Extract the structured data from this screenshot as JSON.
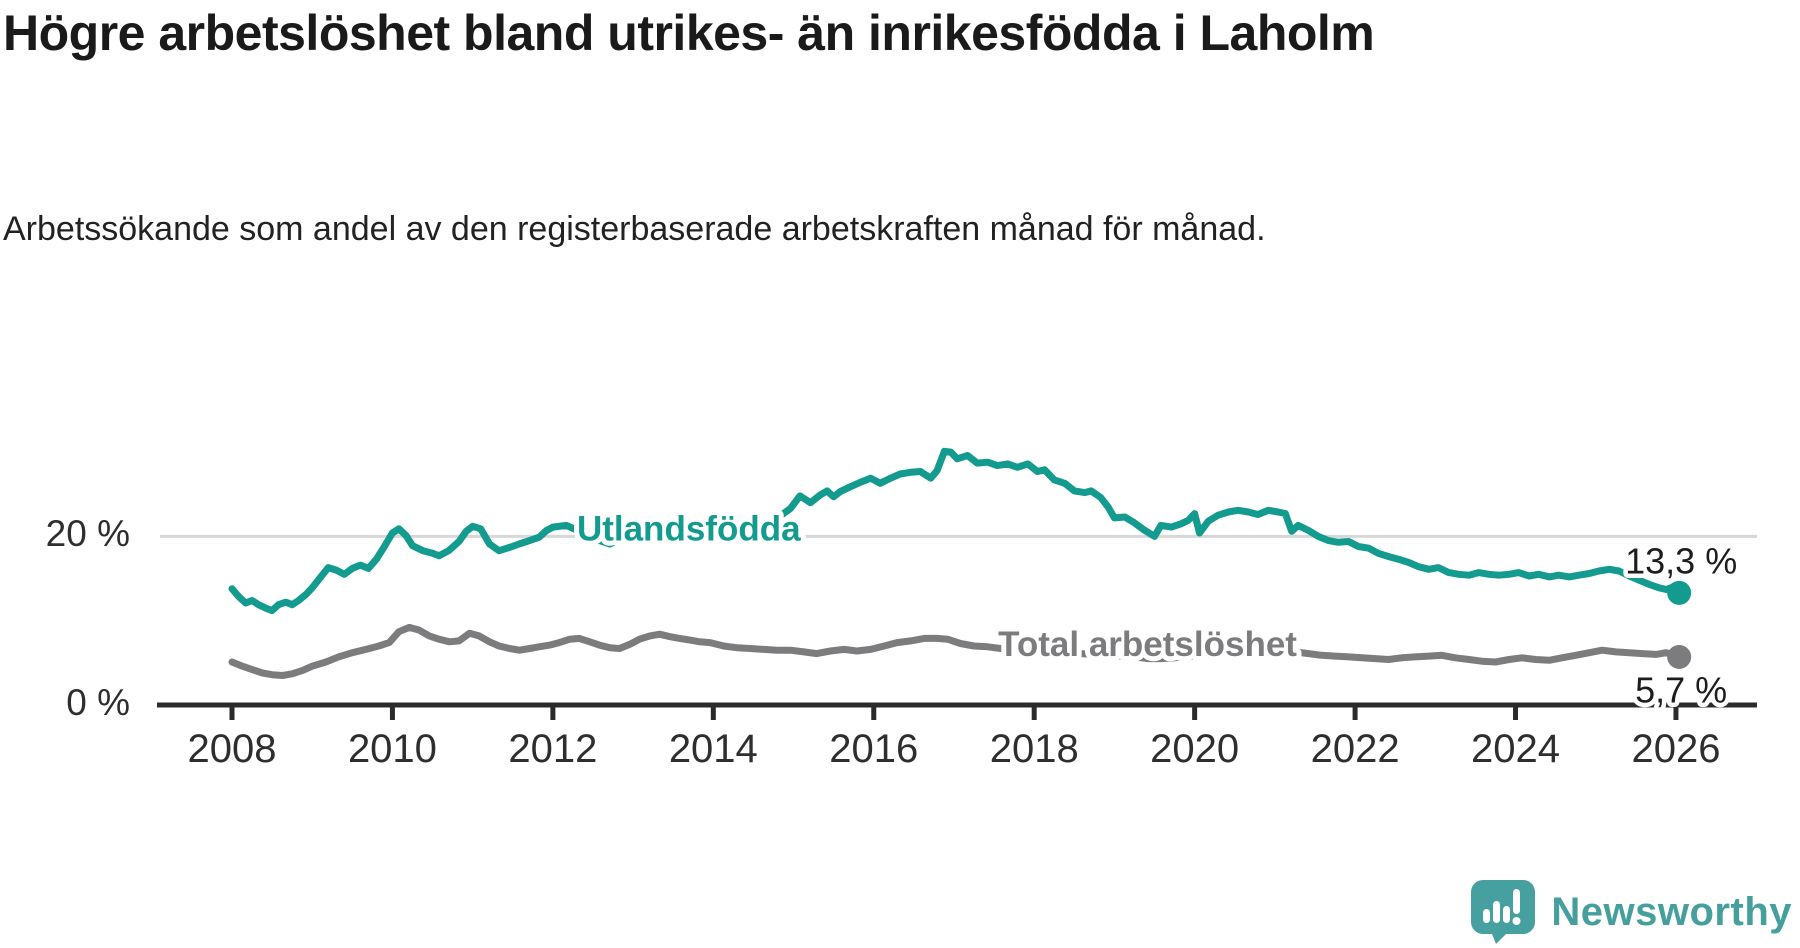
{
  "header": {
    "title": "Högre arbetslöshet bland utrikes- än inrikesfödda i Laholm",
    "subtitle": "Arbetssökande som andel av den registerbaserade arbetskraften månad för månad."
  },
  "footer": {
    "brand": "Newsworthy",
    "logo_icon": "newsworthy-speech-bubble-bar-chart-icon"
  },
  "colors": {
    "series_foreign_born": "#129b8e",
    "series_total": "#7c7c7e",
    "grid": "#d7d7d7",
    "axis": "#2b2b2b",
    "tick_text": "#2e2e2e",
    "annotation_text": "#1d1d1d",
    "logo_teal": "#46a09f",
    "background": "#ffffff"
  },
  "chart_data": {
    "type": "line",
    "unit": "%",
    "x_ticks": [
      2008,
      2010,
      2012,
      2014,
      2016,
      2018,
      2020,
      2022,
      2024,
      2026
    ],
    "y_gridlines": [
      {
        "value": 20,
        "label": "20 %"
      },
      {
        "value": 0,
        "label": "0 %"
      }
    ],
    "xlim": [
      2007.07,
      2026.99
    ],
    "ylim": [
      0,
      38.5
    ],
    "grid": true,
    "legend_position": "inline-labels",
    "series": [
      {
        "name": "Utlandsfödda",
        "color": "#129b8e",
        "end_label": "13,3 %",
        "end_label_position": "above",
        "label_anchor": {
          "x": 2012.3,
          "y": 20.6
        },
        "points": [
          [
            2008.0,
            13.8
          ],
          [
            2008.08,
            12.9
          ],
          [
            2008.17,
            12.1
          ],
          [
            2008.25,
            12.4
          ],
          [
            2008.33,
            11.9
          ],
          [
            2008.42,
            11.5
          ],
          [
            2008.5,
            11.2
          ],
          [
            2008.58,
            11.9
          ],
          [
            2008.67,
            12.2
          ],
          [
            2008.75,
            11.9
          ],
          [
            2008.83,
            12.4
          ],
          [
            2008.92,
            13.1
          ],
          [
            2009.0,
            13.9
          ],
          [
            2009.1,
            15.1
          ],
          [
            2009.2,
            16.3
          ],
          [
            2009.3,
            16.0
          ],
          [
            2009.4,
            15.5
          ],
          [
            2009.5,
            16.2
          ],
          [
            2009.6,
            16.6
          ],
          [
            2009.7,
            16.2
          ],
          [
            2009.8,
            17.3
          ],
          [
            2009.9,
            18.8
          ],
          [
            2010.0,
            20.4
          ],
          [
            2010.08,
            20.9
          ],
          [
            2010.17,
            20.1
          ],
          [
            2010.25,
            18.9
          ],
          [
            2010.38,
            18.3
          ],
          [
            2010.5,
            18.0
          ],
          [
            2010.58,
            17.7
          ],
          [
            2010.7,
            18.3
          ],
          [
            2010.83,
            19.4
          ],
          [
            2010.92,
            20.6
          ],
          [
            2011.0,
            21.2
          ],
          [
            2011.1,
            20.9
          ],
          [
            2011.21,
            19.1
          ],
          [
            2011.33,
            18.3
          ],
          [
            2011.46,
            18.7
          ],
          [
            2011.58,
            19.1
          ],
          [
            2011.71,
            19.5
          ],
          [
            2011.83,
            19.9
          ],
          [
            2011.92,
            20.7
          ],
          [
            2012.0,
            21.1
          ],
          [
            2012.17,
            21.3
          ],
          [
            2012.33,
            20.6
          ],
          [
            2012.46,
            19.9
          ],
          [
            2012.58,
            19.5
          ],
          [
            2012.71,
            19.1
          ],
          [
            2012.83,
            19.6
          ],
          [
            2012.96,
            20.3
          ],
          [
            2013.08,
            21.2
          ],
          [
            2013.21,
            21.9
          ],
          [
            2013.33,
            21.2
          ],
          [
            2013.46,
            20.8
          ],
          [
            2013.58,
            20.3
          ],
          [
            2013.71,
            20.1
          ],
          [
            2013.83,
            20.6
          ],
          [
            2013.96,
            21.0
          ],
          [
            2014.08,
            20.6
          ],
          [
            2014.21,
            20.0
          ],
          [
            2014.33,
            19.7
          ],
          [
            2014.46,
            20.0
          ],
          [
            2014.58,
            20.4
          ],
          [
            2014.71,
            21.5
          ],
          [
            2014.83,
            22.4
          ],
          [
            2014.96,
            23.3
          ],
          [
            2015.08,
            24.8
          ],
          [
            2015.21,
            24.0
          ],
          [
            2015.33,
            24.9
          ],
          [
            2015.42,
            25.4
          ],
          [
            2015.5,
            24.7
          ],
          [
            2015.58,
            25.3
          ],
          [
            2015.71,
            25.9
          ],
          [
            2015.83,
            26.4
          ],
          [
            2015.96,
            26.9
          ],
          [
            2016.08,
            26.3
          ],
          [
            2016.21,
            26.9
          ],
          [
            2016.33,
            27.4
          ],
          [
            2016.46,
            27.6
          ],
          [
            2016.58,
            27.7
          ],
          [
            2016.71,
            26.9
          ],
          [
            2016.79,
            27.8
          ],
          [
            2016.88,
            30.1
          ],
          [
            2016.96,
            30.0
          ],
          [
            2017.04,
            29.2
          ],
          [
            2017.17,
            29.6
          ],
          [
            2017.29,
            28.7
          ],
          [
            2017.42,
            28.8
          ],
          [
            2017.54,
            28.4
          ],
          [
            2017.67,
            28.6
          ],
          [
            2017.79,
            28.2
          ],
          [
            2017.92,
            28.6
          ],
          [
            2018.04,
            27.7
          ],
          [
            2018.13,
            27.9
          ],
          [
            2018.25,
            26.7
          ],
          [
            2018.38,
            26.3
          ],
          [
            2018.5,
            25.4
          ],
          [
            2018.63,
            25.2
          ],
          [
            2018.71,
            25.4
          ],
          [
            2018.83,
            24.6
          ],
          [
            2018.92,
            23.5
          ],
          [
            2019.0,
            22.2
          ],
          [
            2019.13,
            22.3
          ],
          [
            2019.25,
            21.6
          ],
          [
            2019.38,
            20.7
          ],
          [
            2019.5,
            20.0
          ],
          [
            2019.58,
            21.3
          ],
          [
            2019.71,
            21.1
          ],
          [
            2019.83,
            21.5
          ],
          [
            2019.92,
            21.9
          ],
          [
            2020.0,
            22.7
          ],
          [
            2020.06,
            20.4
          ],
          [
            2020.17,
            21.8
          ],
          [
            2020.29,
            22.5
          ],
          [
            2020.42,
            22.9
          ],
          [
            2020.54,
            23.1
          ],
          [
            2020.67,
            22.9
          ],
          [
            2020.79,
            22.6
          ],
          [
            2020.92,
            23.1
          ],
          [
            2021.04,
            22.9
          ],
          [
            2021.13,
            22.7
          ],
          [
            2021.21,
            20.6
          ],
          [
            2021.29,
            21.3
          ],
          [
            2021.42,
            20.7
          ],
          [
            2021.54,
            20.0
          ],
          [
            2021.67,
            19.5
          ],
          [
            2021.79,
            19.3
          ],
          [
            2021.92,
            19.4
          ],
          [
            2022.04,
            18.8
          ],
          [
            2022.17,
            18.6
          ],
          [
            2022.29,
            18.0
          ],
          [
            2022.42,
            17.6
          ],
          [
            2022.54,
            17.3
          ],
          [
            2022.67,
            16.9
          ],
          [
            2022.79,
            16.4
          ],
          [
            2022.92,
            16.1
          ],
          [
            2023.04,
            16.3
          ],
          [
            2023.17,
            15.7
          ],
          [
            2023.29,
            15.5
          ],
          [
            2023.42,
            15.4
          ],
          [
            2023.54,
            15.7
          ],
          [
            2023.67,
            15.5
          ],
          [
            2023.79,
            15.4
          ],
          [
            2023.92,
            15.5
          ],
          [
            2024.04,
            15.7
          ],
          [
            2024.17,
            15.3
          ],
          [
            2024.29,
            15.5
          ],
          [
            2024.42,
            15.2
          ],
          [
            2024.54,
            15.4
          ],
          [
            2024.67,
            15.2
          ],
          [
            2024.79,
            15.4
          ],
          [
            2024.92,
            15.6
          ],
          [
            2025.04,
            15.9
          ],
          [
            2025.17,
            16.1
          ],
          [
            2025.29,
            15.9
          ],
          [
            2025.42,
            15.3
          ],
          [
            2025.54,
            14.8
          ],
          [
            2025.67,
            14.3
          ],
          [
            2025.79,
            13.9
          ],
          [
            2025.88,
            13.7
          ],
          [
            2025.96,
            14.0
          ],
          [
            2026.04,
            13.3
          ]
        ]
      },
      {
        "name": "Total arbetslöshet",
        "color": "#7c7c7e",
        "end_label": "5,7 %",
        "end_label_position": "below",
        "label_anchor": {
          "x": 2017.55,
          "y": 6.9
        },
        "points": [
          [
            2008.0,
            5.1
          ],
          [
            2008.13,
            4.6
          ],
          [
            2008.25,
            4.2
          ],
          [
            2008.38,
            3.8
          ],
          [
            2008.5,
            3.6
          ],
          [
            2008.63,
            3.5
          ],
          [
            2008.75,
            3.7
          ],
          [
            2008.88,
            4.1
          ],
          [
            2009.0,
            4.6
          ],
          [
            2009.17,
            5.1
          ],
          [
            2009.33,
            5.7
          ],
          [
            2009.5,
            6.2
          ],
          [
            2009.67,
            6.6
          ],
          [
            2009.83,
            7.0
          ],
          [
            2009.96,
            7.4
          ],
          [
            2010.08,
            8.7
          ],
          [
            2010.21,
            9.2
          ],
          [
            2010.33,
            8.9
          ],
          [
            2010.46,
            8.2
          ],
          [
            2010.58,
            7.8
          ],
          [
            2010.71,
            7.5
          ],
          [
            2010.83,
            7.6
          ],
          [
            2010.96,
            8.5
          ],
          [
            2011.08,
            8.2
          ],
          [
            2011.21,
            7.5
          ],
          [
            2011.33,
            7.0
          ],
          [
            2011.46,
            6.7
          ],
          [
            2011.58,
            6.5
          ],
          [
            2011.71,
            6.7
          ],
          [
            2011.83,
            6.9
          ],
          [
            2011.96,
            7.1
          ],
          [
            2012.08,
            7.4
          ],
          [
            2012.21,
            7.8
          ],
          [
            2012.33,
            7.9
          ],
          [
            2012.46,
            7.5
          ],
          [
            2012.58,
            7.1
          ],
          [
            2012.71,
            6.8
          ],
          [
            2012.83,
            6.7
          ],
          [
            2012.96,
            7.2
          ],
          [
            2013.08,
            7.8
          ],
          [
            2013.21,
            8.2
          ],
          [
            2013.33,
            8.4
          ],
          [
            2013.46,
            8.1
          ],
          [
            2013.58,
            7.9
          ],
          [
            2013.71,
            7.7
          ],
          [
            2013.83,
            7.5
          ],
          [
            2013.96,
            7.4
          ],
          [
            2014.13,
            7.0
          ],
          [
            2014.29,
            6.8
          ],
          [
            2014.46,
            6.7
          ],
          [
            2014.63,
            6.6
          ],
          [
            2014.79,
            6.5
          ],
          [
            2014.96,
            6.5
          ],
          [
            2015.13,
            6.3
          ],
          [
            2015.29,
            6.1
          ],
          [
            2015.46,
            6.4
          ],
          [
            2015.63,
            6.6
          ],
          [
            2015.79,
            6.4
          ],
          [
            2015.96,
            6.6
          ],
          [
            2016.13,
            7.0
          ],
          [
            2016.29,
            7.4
          ],
          [
            2016.46,
            7.6
          ],
          [
            2016.63,
            7.9
          ],
          [
            2016.79,
            7.9
          ],
          [
            2016.92,
            7.8
          ],
          [
            2017.08,
            7.3
          ],
          [
            2017.25,
            7.0
          ],
          [
            2017.42,
            6.9
          ],
          [
            2017.58,
            6.7
          ],
          [
            2017.75,
            6.8
          ],
          [
            2017.92,
            6.9
          ],
          [
            2018.08,
            6.7
          ],
          [
            2018.25,
            6.5
          ],
          [
            2018.42,
            6.2
          ],
          [
            2018.58,
            6.1
          ],
          [
            2018.75,
            6.0
          ],
          [
            2018.92,
            5.9
          ],
          [
            2019.08,
            5.8
          ],
          [
            2019.25,
            5.7
          ],
          [
            2019.42,
            5.5
          ],
          [
            2019.58,
            5.5
          ],
          [
            2019.75,
            5.6
          ],
          [
            2019.92,
            5.7
          ],
          [
            2020.08,
            5.9
          ],
          [
            2020.25,
            6.5
          ],
          [
            2020.42,
            6.8
          ],
          [
            2020.58,
            6.9
          ],
          [
            2020.75,
            6.8
          ],
          [
            2020.92,
            6.7
          ],
          [
            2021.08,
            6.5
          ],
          [
            2021.25,
            6.3
          ],
          [
            2021.42,
            6.1
          ],
          [
            2021.58,
            5.9
          ],
          [
            2021.75,
            5.8
          ],
          [
            2021.92,
            5.7
          ],
          [
            2022.08,
            5.6
          ],
          [
            2022.25,
            5.5
          ],
          [
            2022.42,
            5.4
          ],
          [
            2022.58,
            5.6
          ],
          [
            2022.75,
            5.7
          ],
          [
            2022.92,
            5.8
          ],
          [
            2023.08,
            5.9
          ],
          [
            2023.25,
            5.6
          ],
          [
            2023.42,
            5.4
          ],
          [
            2023.58,
            5.2
          ],
          [
            2023.75,
            5.1
          ],
          [
            2023.92,
            5.4
          ],
          [
            2024.08,
            5.6
          ],
          [
            2024.25,
            5.4
          ],
          [
            2024.42,
            5.3
          ],
          [
            2024.58,
            5.6
          ],
          [
            2024.75,
            5.9
          ],
          [
            2024.92,
            6.2
          ],
          [
            2025.08,
            6.5
          ],
          [
            2025.25,
            6.3
          ],
          [
            2025.42,
            6.2
          ],
          [
            2025.58,
            6.1
          ],
          [
            2025.75,
            6.0
          ],
          [
            2025.88,
            6.2
          ],
          [
            2026.04,
            5.7
          ]
        ]
      }
    ]
  }
}
